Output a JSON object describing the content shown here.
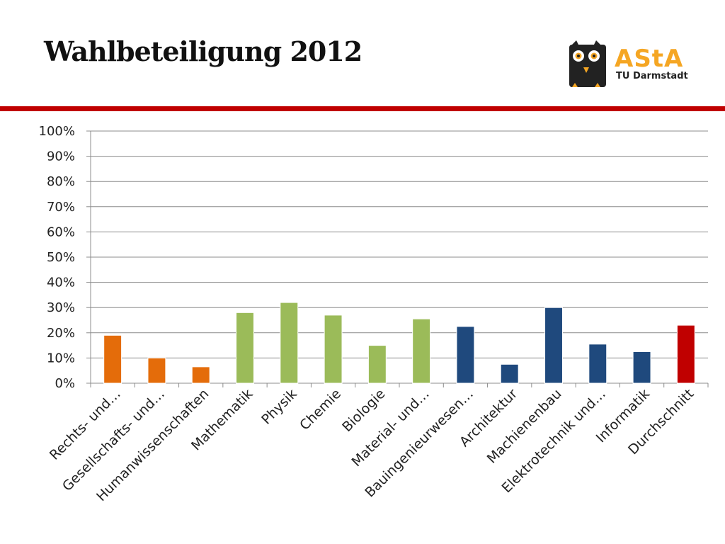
{
  "slide": {
    "title": "Wahlbeteiligung 2012",
    "rule_color": "#c00000"
  },
  "logo": {
    "word": "AStA",
    "subtitle": "TU Darmstadt",
    "accent_color": "#f5a623",
    "owl_color": "#222222"
  },
  "chart_data": {
    "type": "bar",
    "categories": [
      "Rechts- und…",
      "Gesellschafts- und…",
      "Humanwissenschaften",
      "Mathematik",
      "Physik",
      "Chemie",
      "Biologie",
      "Material- und…",
      "Bauingenieurwesen…",
      "Architektur",
      "Machienenbau",
      "Elektrotechnik und…",
      "Informatik",
      "Durchschnitt"
    ],
    "values": [
      19,
      10,
      6.5,
      28,
      32,
      27,
      15,
      25.5,
      22.5,
      7.5,
      30,
      15.5,
      12.5,
      23
    ],
    "colors": [
      "#e46c0a",
      "#e46c0a",
      "#e46c0a",
      "#9bbb59",
      "#9bbb59",
      "#9bbb59",
      "#9bbb59",
      "#9bbb59",
      "#1f497d",
      "#1f497d",
      "#1f497d",
      "#1f497d",
      "#1f497d",
      "#c00000"
    ],
    "ylim": [
      0,
      100
    ],
    "yticks": [
      0,
      10,
      20,
      30,
      40,
      50,
      60,
      70,
      80,
      90,
      100
    ],
    "ytick_suffix": "%",
    "grid": true,
    "xlabel": "",
    "ylabel": ""
  }
}
